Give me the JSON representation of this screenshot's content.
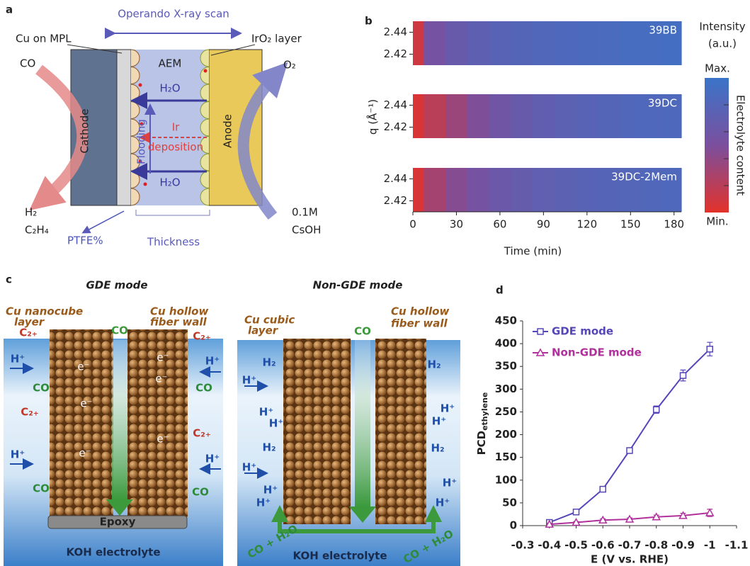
{
  "panel_a": {
    "label": "a",
    "title": "Operando X-ray scan",
    "cu_on_mpl": "Cu on MPL",
    "iro2_layer": "IrO₂ layer",
    "co": "CO",
    "o2": "O₂",
    "aem": "AEM",
    "h2o_top": "H₂O",
    "h2o_bottom": "H₂O",
    "cathode": "Cathode",
    "anode": "Anode",
    "flooding": "Flooding",
    "ir_deposition": [
      "Ir",
      "deposition"
    ],
    "products": [
      "H₂",
      "C₂H₄"
    ],
    "electrolyte": [
      "0.1M",
      "CsOH"
    ],
    "ptfe": "PTFE%",
    "thickness": "Thickness"
  },
  "chart_data": [
    {
      "type": "heatmap",
      "panel_label": "b",
      "x": [
        0,
        15,
        30,
        45,
        60,
        75,
        90,
        105,
        120,
        135,
        150,
        165,
        180
      ],
      "series": [
        {
          "name": "39BB",
          "values": [
            0.1,
            0.55,
            0.65,
            0.72,
            0.77,
            0.8,
            0.83,
            0.85,
            0.87,
            0.88,
            0.9,
            0.91,
            0.92
          ]
        },
        {
          "name": "39DC",
          "values": [
            0.05,
            0.2,
            0.35,
            0.48,
            0.58,
            0.65,
            0.7,
            0.74,
            0.77,
            0.8,
            0.82,
            0.84,
            0.85
          ]
        },
        {
          "name": "39DC-2Mem",
          "values": [
            0.05,
            0.3,
            0.45,
            0.55,
            0.62,
            0.67,
            0.71,
            0.74,
            0.77,
            0.79,
            0.81,
            0.83,
            0.84
          ]
        }
      ],
      "xlim": [
        0,
        185
      ],
      "xticks": [
        0,
        30,
        60,
        90,
        120,
        150,
        180
      ],
      "ylim": [
        2.41,
        2.45
      ],
      "yticks": [
        2.42,
        2.44
      ],
      "zlim": [
        0,
        1
      ],
      "xlabel": "Time (min)",
      "ylabel": "q (Å⁻¹)",
      "colorbar": {
        "title": [
          "Intensity",
          "(a.u.)"
        ],
        "max": "Max.",
        "min": "Min.",
        "label": "Electrolyte content",
        "colors": [
          "#e3322a",
          "#7b4f9e",
          "#3a74c8"
        ]
      }
    },
    {
      "type": "line",
      "panel_label": "d",
      "x": [
        -0.4,
        -0.5,
        -0.6,
        -0.7,
        -0.8,
        -0.9,
        -1
      ],
      "series": [
        {
          "name": "GDE mode",
          "color": "#5546b8",
          "marker": "square",
          "values": [
            7,
            30,
            80,
            165,
            255,
            330,
            388
          ],
          "errors": [
            3,
            3,
            4,
            5,
            8,
            12,
            15
          ]
        },
        {
          "name": "Non-GDE mode",
          "color": "#b0309c",
          "marker": "triangle",
          "values": [
            3,
            7,
            12,
            14,
            19,
            22,
            28
          ],
          "errors": [
            2,
            2,
            3,
            3,
            4,
            5,
            8
          ]
        }
      ],
      "xlim": [
        -0.3,
        -1.1
      ],
      "xticks": [
        -0.3,
        -0.4,
        -0.5,
        -0.6,
        -0.7,
        -0.8,
        -0.9,
        -1,
        -1.1
      ],
      "ylim": [
        0,
        450
      ],
      "yticks": [
        0,
        50,
        100,
        150,
        200,
        250,
        300,
        350,
        400,
        450
      ],
      "xlabel": "E (V vs. RHE)",
      "ylabel": "PCD",
      "ylabel_sub": "ethylene",
      "legend": "upper left"
    }
  ],
  "panel_c": {
    "label": "c",
    "gde": {
      "title": "GDE mode",
      "nanocube": [
        "Cu nanocube",
        "layer"
      ],
      "fiber": [
        "Cu hollow",
        "fiber wall"
      ],
      "co": "CO",
      "epoxy": "Epoxy",
      "electrolyte": "KOH electrolyte",
      "labels": [
        "C₂₊",
        "H⁺",
        "CO",
        "C₂₊",
        "H⁺",
        "CO",
        "C₂₊",
        "H⁺",
        "CO",
        "C₂₊",
        "H⁺",
        "CO"
      ],
      "electrons": [
        "e⁻",
        "e⁻",
        "e⁻",
        "e⁻",
        "e⁻",
        "e⁻"
      ]
    },
    "non_gde": {
      "title": "Non-GDE mode",
      "cubic": [
        "Cu cubic",
        "layer"
      ],
      "fiber": [
        "Cu hollow",
        "fiber wall"
      ],
      "co": "CO",
      "co_h2o": [
        "CO + H₂O",
        "CO + H₂O"
      ],
      "electrolyte": "KOH electrolyte",
      "labels": [
        "H₂",
        "H⁺",
        "H⁺",
        "H⁺",
        "H₂",
        "H⁺",
        "H⁺",
        "H⁺",
        "H₂",
        "H⁺",
        "H⁺",
        "H₂",
        "H⁺",
        "H⁺"
      ]
    }
  }
}
